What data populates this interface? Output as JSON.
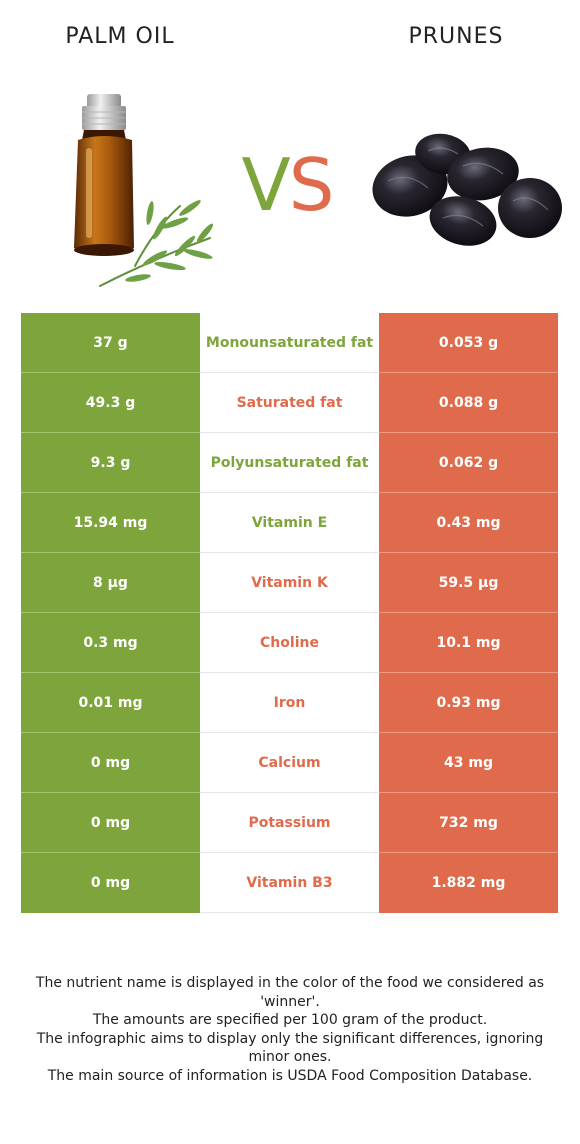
{
  "header": {
    "left_food": "PALM OIL",
    "right_food": "PRUNES",
    "vs_v": "V",
    "vs_s": "S"
  },
  "colors": {
    "left_green": "#7da53b",
    "right_red": "#e06b4c"
  },
  "images": {
    "left": "essential-oil-bottle-with-herb",
    "right": "dried-prunes"
  },
  "rows": [
    {
      "nutrient": "Monounsaturated fat",
      "left": "37 g",
      "right": "0.053 g",
      "winner": "left"
    },
    {
      "nutrient": "Saturated fat",
      "left": "49.3 g",
      "right": "0.088 g",
      "winner": "right"
    },
    {
      "nutrient": "Polyunsaturated fat",
      "left": "9.3 g",
      "right": "0.062 g",
      "winner": "left"
    },
    {
      "nutrient": "Vitamin E",
      "left": "15.94 mg",
      "right": "0.43 mg",
      "winner": "left"
    },
    {
      "nutrient": "Vitamin K",
      "left": "8 µg",
      "right": "59.5 µg",
      "winner": "right"
    },
    {
      "nutrient": "Choline",
      "left": "0.3 mg",
      "right": "10.1 mg",
      "winner": "right"
    },
    {
      "nutrient": "Iron",
      "left": "0.01 mg",
      "right": "0.93 mg",
      "winner": "right"
    },
    {
      "nutrient": "Calcium",
      "left": "0 mg",
      "right": "43 mg",
      "winner": "right"
    },
    {
      "nutrient": "Potassium",
      "left": "0 mg",
      "right": "732 mg",
      "winner": "right"
    },
    {
      "nutrient": "Vitamin B3",
      "left": "0 mg",
      "right": "1.882 mg",
      "winner": "right"
    }
  ],
  "footer": {
    "line1": "The nutrient name is displayed in the color of the food we considered as 'winner'.",
    "line2": "The amounts are specified per 100 gram of the product.",
    "line3": "The infographic aims to display only the significant differences, ignoring minor ones.",
    "line4": "The main source of information is USDA Food Composition Database."
  }
}
